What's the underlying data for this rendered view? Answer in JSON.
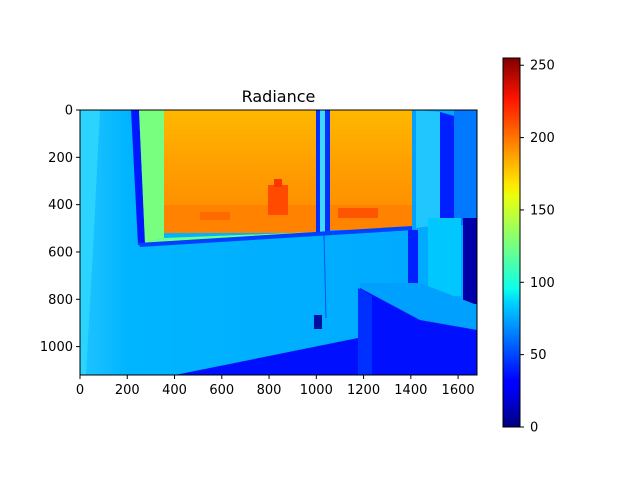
{
  "chart_data": {
    "type": "heatmap",
    "title": "Radiance",
    "xlabel": "",
    "ylabel": "",
    "x_ticks": [
      0,
      200,
      400,
      600,
      800,
      1000,
      1200,
      1400,
      1600
    ],
    "y_ticks": [
      0,
      200,
      400,
      600,
      800,
      1000
    ],
    "xlim": [
      0,
      1680
    ],
    "ylim": [
      1120,
      0
    ],
    "colormap": "jet",
    "colorbar": {
      "min": 0,
      "max": 255,
      "ticks": [
        0,
        50,
        100,
        150,
        200,
        250
      ]
    },
    "grid": false,
    "legend": "none",
    "regions": {
      "wall_value": 95,
      "wall_left_value": 112,
      "outside_view_value": 195,
      "outside_upper_value": 180,
      "window_frame_value": 45,
      "window_sill_value": 110,
      "desk_value": 38,
      "monitor_value": 20,
      "floor_value": 40
    }
  }
}
